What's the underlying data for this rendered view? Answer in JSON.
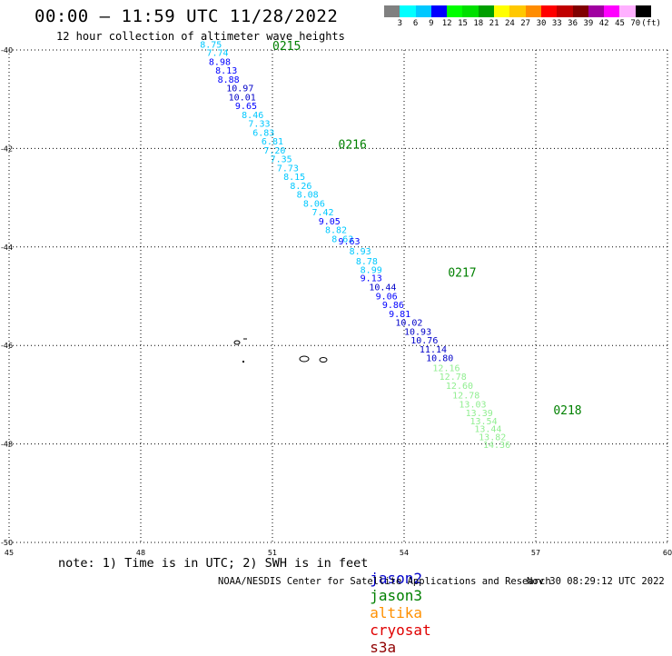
{
  "header": {
    "title": "00:00 – 11:59 UTC 11/28/2022",
    "subtitle": "12 hour collection of altimeter wave heights"
  },
  "color_scale": {
    "colors": [
      "#808080",
      "#00ffff",
      "#00c8ff",
      "#0000ff",
      "#00ff00",
      "#00e000",
      "#00a000",
      "#ffff00",
      "#ffc800",
      "#ff8c00",
      "#ff0000",
      "#c00000",
      "#800000",
      "#a000a0",
      "#ff00ff",
      "#ffb0ff",
      "#000000"
    ],
    "tick_labels": [
      "3",
      "6",
      "9",
      "12",
      "15",
      "18",
      "21",
      "24",
      "27",
      "30",
      "33",
      "36",
      "39",
      "42",
      "45",
      "70",
      "(ft)"
    ]
  },
  "satellites": {
    "jason2": {
      "name": "jason2",
      "color": "#0000c8"
    },
    "jason3": {
      "name": "jason3",
      "color": "#008000"
    },
    "altika": {
      "name": "altika",
      "color": "#ff9000"
    },
    "cryosat": {
      "name": "cryosat",
      "color": "#e00000"
    },
    "s3a": {
      "name": "s3a",
      "color": "#900000"
    }
  },
  "note": "note: 1) Time is in UTC; 2) SWH is in feet",
  "footer": {
    "left": "NOAA/NESDIS Center for Satellite Applications and Research",
    "right": "Nov 30 08:29:12 UTC 2022"
  },
  "map": {
    "lon_range": [
      45,
      60
    ],
    "lat_range": [
      -50,
      -40
    ],
    "lon_ticks": [
      45,
      48,
      51,
      54,
      57,
      60
    ],
    "lat_ticks": [
      -40,
      -42,
      -44,
      -46,
      -48,
      -50
    ],
    "lon_tick_labels": [
      "45",
      "48",
      "51",
      "54",
      "57",
      "60"
    ],
    "lat_tick_labels": [
      "-40",
      "-42",
      "-44",
      "-46",
      "-48",
      "-50"
    ]
  },
  "chart_data": {
    "type": "scatter",
    "xlabel": "",
    "ylabel": "",
    "tracks": [
      {
        "name": "diagonal_track",
        "times": [
          {
            "lon": 51.0,
            "lat": -40.0,
            "label": "0215",
            "sat": "jason3"
          },
          {
            "lon": 52.5,
            "lat": -42.0,
            "label": "0216",
            "sat": "jason3"
          },
          {
            "lon": 55.0,
            "lat": -44.6,
            "label": "0217",
            "sat": "jason3"
          },
          {
            "lon": 57.4,
            "lat": -47.4,
            "label": "0218",
            "sat": "jason3"
          }
        ],
        "points": [
          {
            "lon": 49.35,
            "lat": -39.95,
            "v": "8.75",
            "c": "#00c8ff"
          },
          {
            "lon": 49.5,
            "lat": -40.12,
            "v": "7.74",
            "c": "#00c8ff"
          },
          {
            "lon": 49.55,
            "lat": -40.3,
            "v": "8.98",
            "c": "#0000ff"
          },
          {
            "lon": 49.7,
            "lat": -40.48,
            "v": "8.13",
            "c": "#0000ff"
          },
          {
            "lon": 49.75,
            "lat": -40.66,
            "v": "8.88",
            "c": "#0000ff"
          },
          {
            "lon": 49.95,
            "lat": -40.84,
            "v": "10.97",
            "c": "#0000c8"
          },
          {
            "lon": 50.0,
            "lat": -41.02,
            "v": "10.01",
            "c": "#0000c8"
          },
          {
            "lon": 50.15,
            "lat": -41.2,
            "v": "9.65",
            "c": "#0000ff"
          },
          {
            "lon": 50.3,
            "lat": -41.38,
            "v": "8.46",
            "c": "#00c8ff"
          },
          {
            "lon": 50.45,
            "lat": -41.56,
            "v": "7.33",
            "c": "#00c8ff"
          },
          {
            "lon": 50.55,
            "lat": -41.74,
            "v": "6.83",
            "c": "#00c8ff"
          },
          {
            "lon": 50.75,
            "lat": -41.92,
            "v": "6.81",
            "c": "#00c8ff"
          },
          {
            "lon": 50.8,
            "lat": -42.1,
            "v": "7.20",
            "c": "#00c8ff"
          },
          {
            "lon": 50.95,
            "lat": -42.28,
            "v": "7.35",
            "c": "#00c8ff"
          },
          {
            "lon": 51.1,
            "lat": -42.46,
            "v": "7.73",
            "c": "#00c8ff"
          },
          {
            "lon": 51.25,
            "lat": -42.64,
            "v": "8.15",
            "c": "#00c8ff"
          },
          {
            "lon": 51.4,
            "lat": -42.82,
            "v": "8.26",
            "c": "#00c8ff"
          },
          {
            "lon": 51.55,
            "lat": -43.0,
            "v": "8.08",
            "c": "#00c8ff"
          },
          {
            "lon": 51.7,
            "lat": -43.18,
            "v": "8.06",
            "c": "#00c8ff"
          },
          {
            "lon": 51.9,
            "lat": -43.36,
            "v": "7.42",
            "c": "#00c8ff"
          },
          {
            "lon": 52.05,
            "lat": -43.54,
            "v": "9.05",
            "c": "#0000ff"
          },
          {
            "lon": 52.2,
            "lat": -43.72,
            "v": "8.82",
            "c": "#00c8ff"
          },
          {
            "lon": 52.35,
            "lat": -43.9,
            "v": "8.63",
            "c": "#00c8ff"
          },
          {
            "lon": 52.5,
            "lat": -43.95,
            "v": "9.63",
            "c": "#0000ff"
          },
          {
            "lon": 52.75,
            "lat": -44.15,
            "v": "8.93",
            "c": "#00c8ff"
          },
          {
            "lon": 52.9,
            "lat": -44.35,
            "v": "8.78",
            "c": "#00c8ff"
          },
          {
            "lon": 53.0,
            "lat": -44.53,
            "v": "8.99",
            "c": "#00c8ff"
          },
          {
            "lon": 53.0,
            "lat": -44.7,
            "v": "9.13",
            "c": "#0000ff"
          },
          {
            "lon": 53.2,
            "lat": -44.88,
            "v": "10.44",
            "c": "#0000c8"
          },
          {
            "lon": 53.35,
            "lat": -45.06,
            "v": "9.06",
            "c": "#0000ff"
          },
          {
            "lon": 53.5,
            "lat": -45.24,
            "v": "9.86",
            "c": "#0000ff"
          },
          {
            "lon": 53.65,
            "lat": -45.42,
            "v": "9.81",
            "c": "#0000ff"
          },
          {
            "lon": 53.8,
            "lat": -45.6,
            "v": "10.02",
            "c": "#0000c8"
          },
          {
            "lon": 54.0,
            "lat": -45.78,
            "v": "10.93",
            "c": "#0000c8"
          },
          {
            "lon": 54.15,
            "lat": -45.96,
            "v": "10.76",
            "c": "#0000c8"
          },
          {
            "lon": 54.35,
            "lat": -46.14,
            "v": "11.14",
            "c": "#0000c8"
          },
          {
            "lon": 54.5,
            "lat": -46.32,
            "v": "10.80",
            "c": "#0000c8"
          },
          {
            "lon": 54.65,
            "lat": -46.52,
            "v": "12.16",
            "c": "#90ee90"
          },
          {
            "lon": 54.8,
            "lat": -46.7,
            "v": "12.78",
            "c": "#90ee90"
          },
          {
            "lon": 54.95,
            "lat": -46.88,
            "v": "12.60",
            "c": "#90ee90"
          },
          {
            "lon": 55.1,
            "lat": -47.08,
            "v": "12.78",
            "c": "#90ee90"
          },
          {
            "lon": 55.25,
            "lat": -47.26,
            "v": "13.03",
            "c": "#90ee90"
          },
          {
            "lon": 55.4,
            "lat": -47.44,
            "v": "13.39",
            "c": "#90ee90"
          },
          {
            "lon": 55.5,
            "lat": -47.6,
            "v": "13.54",
            "c": "#90ee90"
          },
          {
            "lon": 55.6,
            "lat": -47.76,
            "v": "13.44",
            "c": "#90ee90"
          },
          {
            "lon": 55.7,
            "lat": -47.92,
            "v": "13.82",
            "c": "#90ee90"
          },
          {
            "lon": 55.8,
            "lat": -48.08,
            "v": "14.36",
            "c": "#90ee90"
          }
        ]
      }
    ]
  }
}
